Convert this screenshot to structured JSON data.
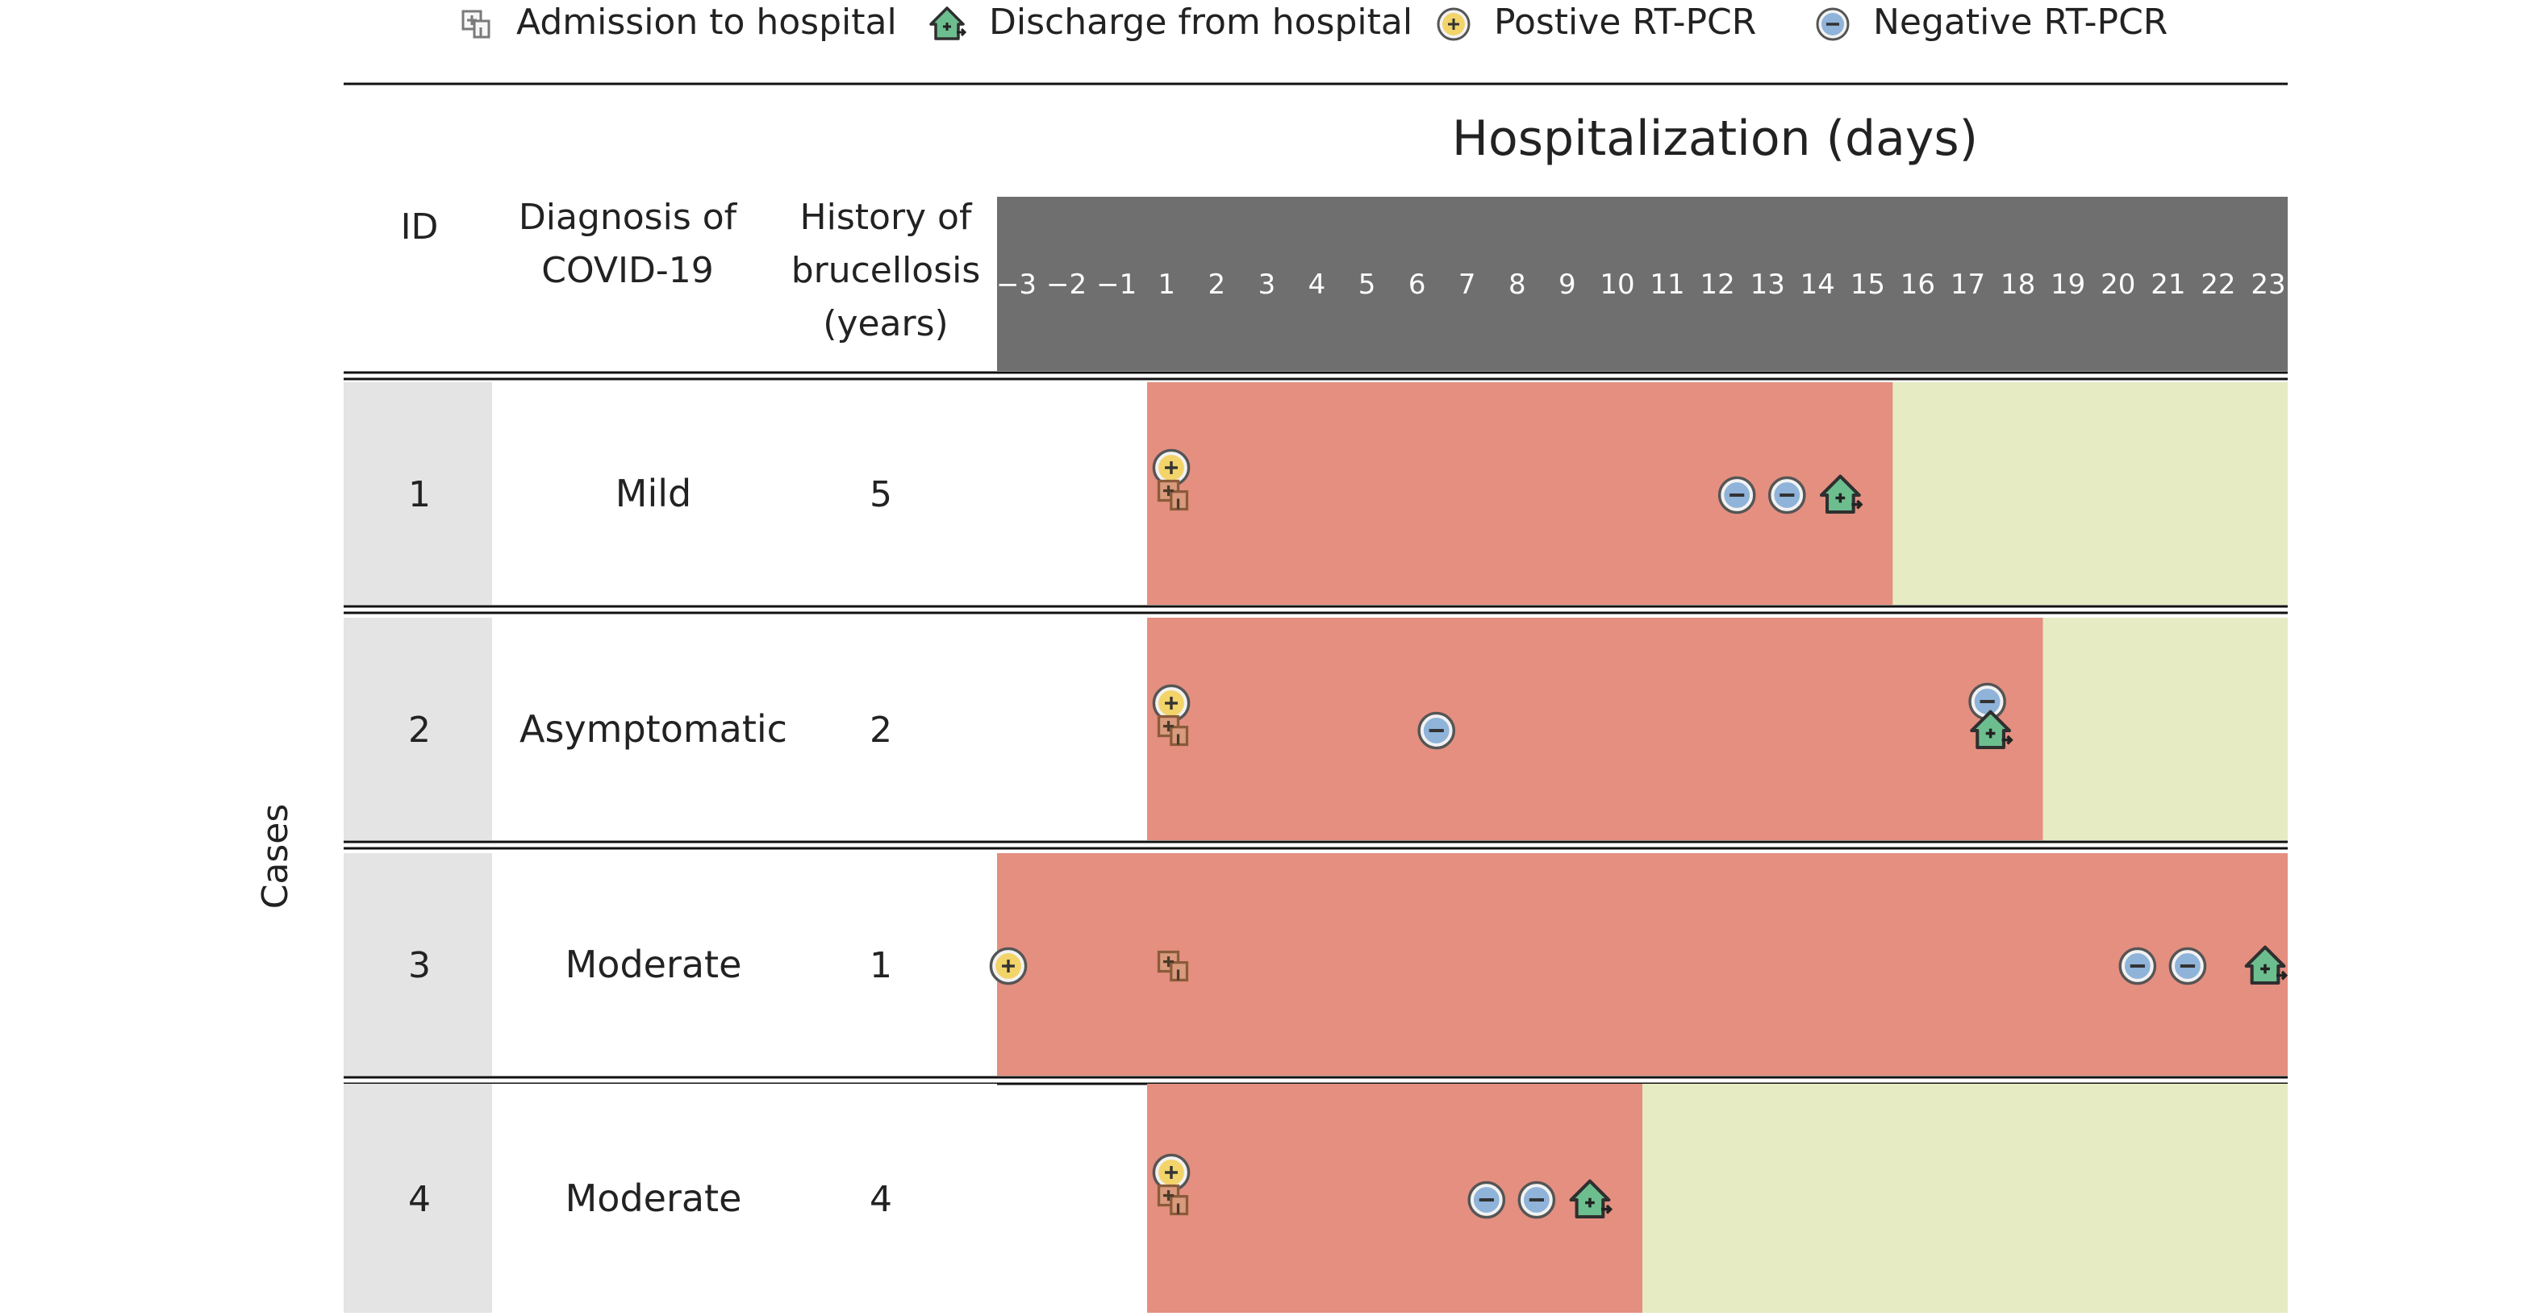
{
  "legend": {
    "admission": "Admission to hospital",
    "discharge": "Discharge from hospital",
    "positive": "Postive RT-PCR",
    "negative": "Negative RT-PCR"
  },
  "header": {
    "title": "Hospitalization (days)",
    "col_id": "ID",
    "col_diag": [
      "Diagnosis of",
      "COVID-19"
    ],
    "col_hist": [
      "History of",
      "brucellosis",
      "(years)"
    ]
  },
  "y_label": "Cases",
  "colors": {
    "infected": "#E48F80",
    "recovered": "#E7EBC3",
    "header_bar": "#6F6F6F",
    "id_col": "#E4E4E4",
    "positive_fill": "#F3D46A",
    "negative_fill": "#8FB3D9",
    "discharge_fill": "#6DBE8F",
    "marker_edge": "#555555"
  },
  "chart_data": {
    "type": "timeline",
    "title": "Hospitalization (days)",
    "xlabel": "Hospitalization (days)",
    "ylabel": "Cases",
    "days": [
      -3,
      -2,
      -1,
      1,
      2,
      3,
      4,
      5,
      6,
      7,
      8,
      9,
      10,
      11,
      12,
      13,
      14,
      15,
      16,
      17,
      18,
      19,
      20,
      21,
      22,
      23
    ],
    "day_labels": [
      "−3",
      "−2",
      "−1",
      "1",
      "2",
      "3",
      "4",
      "5",
      "6",
      "7",
      "8",
      "9",
      "10",
      "11",
      "12",
      "13",
      "14",
      "15",
      "16",
      "17",
      "18",
      "19",
      "20",
      "21",
      "22",
      "23"
    ],
    "cases": [
      {
        "id": "1",
        "diagnosis": "Mild",
        "history_years": "5",
        "infected_from": 1,
        "infected_to": 15.5,
        "recovered_to": 23,
        "positive": [
          1
        ],
        "admission": 1,
        "negative": [
          13,
          14
        ],
        "discharge": 15
      },
      {
        "id": "2",
        "diagnosis": "Asymptomatic",
        "history_years": "2",
        "infected_from": 1,
        "infected_to": 18.5,
        "recovered_to": 23,
        "positive": [
          1
        ],
        "admission": 1,
        "negative": [
          7,
          18
        ],
        "discharge": 18
      },
      {
        "id": "3",
        "diagnosis": "Moderate",
        "history_years": "1",
        "infected_from": -3.5,
        "infected_to": 23,
        "recovered_to": 23,
        "positive": [
          -3
        ],
        "admission": 1,
        "negative": [
          21,
          22
        ],
        "discharge": 23
      },
      {
        "id": "4",
        "diagnosis": "Moderate",
        "history_years": "4",
        "infected_from": 1,
        "infected_to": 10.5,
        "recovered_to": 23,
        "positive": [
          1
        ],
        "admission": 1,
        "negative": [
          8,
          9
        ],
        "discharge": 10
      }
    ]
  }
}
